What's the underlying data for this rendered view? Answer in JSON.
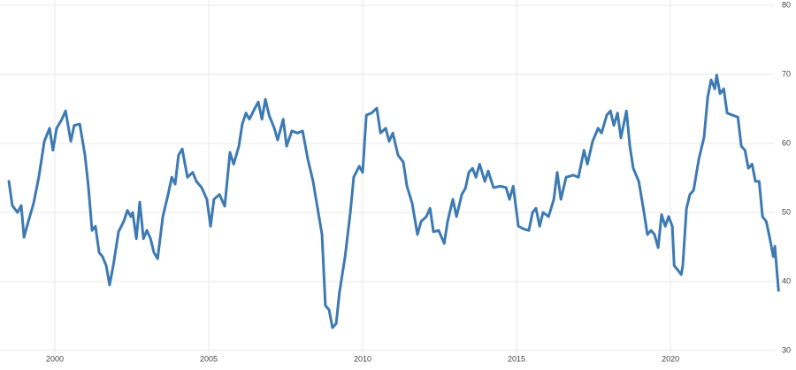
{
  "chart_data": {
    "type": "line",
    "color": "#3d7ab3",
    "grid": true,
    "xlim": [
      1998.22,
      2023.56
    ],
    "xticks": [
      2000,
      2005,
      2010,
      2015,
      2020
    ],
    "ylim": [
      30,
      80
    ],
    "yticks": [
      30,
      40,
      50,
      60,
      70,
      80
    ],
    "x": [
      1998.51,
      1998.62,
      1998.79,
      1998.91,
      1999.0,
      1999.14,
      1999.31,
      1999.48,
      1999.66,
      1999.83,
      1999.94,
      2000.06,
      2000.23,
      2000.35,
      2000.52,
      2000.63,
      2000.81,
      2000.98,
      2001.09,
      2001.21,
      2001.32,
      2001.44,
      2001.55,
      2001.67,
      2001.78,
      2001.9,
      2002.07,
      2002.24,
      2002.36,
      2002.47,
      2002.53,
      2002.65,
      2002.76,
      2002.88,
      2002.99,
      2003.11,
      2003.22,
      2003.34,
      2003.51,
      2003.68,
      2003.8,
      2003.91,
      2004.02,
      2004.14,
      2004.2,
      2004.31,
      2004.48,
      2004.6,
      2004.77,
      2004.94,
      2005.06,
      2005.17,
      2005.35,
      2005.52,
      2005.69,
      2005.81,
      2005.98,
      2006.09,
      2006.21,
      2006.32,
      2006.5,
      2006.61,
      2006.73,
      2006.84,
      2006.96,
      2007.13,
      2007.24,
      2007.42,
      2007.53,
      2007.7,
      2007.88,
      2008.05,
      2008.22,
      2008.39,
      2008.51,
      2008.68,
      2008.79,
      2008.91,
      2009.02,
      2009.14,
      2009.25,
      2009.43,
      2009.6,
      2009.71,
      2009.89,
      2010.0,
      2010.12,
      2010.29,
      2010.46,
      2010.58,
      2010.75,
      2010.86,
      2010.98,
      2011.15,
      2011.32,
      2011.44,
      2011.61,
      2011.78,
      2011.9,
      2012.07,
      2012.19,
      2012.3,
      2012.47,
      2012.65,
      2012.76,
      2012.93,
      2013.05,
      2013.22,
      2013.34,
      2013.45,
      2013.57,
      2013.68,
      2013.8,
      2013.97,
      2014.08,
      2014.25,
      2014.48,
      2014.66,
      2014.77,
      2014.89,
      2015.06,
      2015.23,
      2015.4,
      2015.52,
      2015.63,
      2015.75,
      2015.86,
      2016.04,
      2016.21,
      2016.32,
      2016.44,
      2016.61,
      2016.84,
      2017.01,
      2017.19,
      2017.3,
      2017.47,
      2017.65,
      2017.76,
      2017.93,
      2018.05,
      2018.16,
      2018.28,
      2018.39,
      2018.57,
      2018.68,
      2018.79,
      2018.97,
      2019.14,
      2019.25,
      2019.37,
      2019.48,
      2019.6,
      2019.71,
      2019.83,
      2019.94,
      2020.06,
      2020.12,
      2020.23,
      2020.35,
      2020.4,
      2020.52,
      2020.63,
      2020.75,
      2020.92,
      2021.09,
      2021.21,
      2021.32,
      2021.44,
      2021.5,
      2021.61,
      2021.73,
      2021.84,
      2022.01,
      2022.19,
      2022.3,
      2022.42,
      2022.53,
      2022.65,
      2022.76,
      2022.88,
      2022.99,
      2023.11,
      2023.22,
      2023.34,
      2023.39,
      2023.51
    ],
    "values": [
      54.5,
      51,
      50,
      51,
      46.4,
      48.7,
      51.3,
      55.1,
      60.3,
      62.2,
      59,
      62.2,
      63.5,
      64.7,
      60.3,
      62.6,
      62.8,
      58.3,
      53.8,
      47.4,
      48,
      44.2,
      43.6,
      42.3,
      39.5,
      42.3,
      47.2,
      48.7,
      50.3,
      49.4,
      50,
      46.2,
      51.5,
      46.2,
      47.4,
      46.2,
      44.2,
      43.3,
      49.4,
      52.6,
      55.1,
      54.1,
      58.3,
      59.2,
      57.7,
      55.1,
      55.8,
      54.5,
      53.6,
      51.9,
      48,
      51.9,
      52.6,
      50.9,
      58.7,
      57,
      59.6,
      62.8,
      64.4,
      63.5,
      65.1,
      66,
      63.5,
      66.4,
      64.1,
      62.2,
      60.5,
      63.5,
      59.6,
      61.8,
      61.5,
      61.8,
      57.7,
      54.5,
      51.3,
      46.8,
      36.5,
      35.9,
      33.3,
      33.9,
      38.5,
      43.6,
      50,
      55.1,
      56.7,
      55.8,
      64.1,
      64.4,
      65.1,
      61.5,
      62.2,
      60.3,
      61.5,
      58.3,
      57.3,
      53.8,
      51.3,
      46.8,
      48.7,
      49.4,
      50.6,
      47.2,
      47.4,
      45.5,
      48.7,
      51.9,
      49.4,
      52.6,
      53.5,
      55.8,
      56.4,
      55.1,
      57,
      54.5,
      56,
      53.6,
      53.8,
      53.6,
      51.9,
      53.8,
      48,
      47.6,
      47.4,
      50,
      50.6,
      48,
      50,
      49.4,
      51.9,
      55.8,
      51.9,
      55.1,
      55.4,
      55.1,
      59,
      57,
      60.3,
      62.2,
      61.5,
      64.1,
      64.7,
      62.6,
      64.4,
      60.8,
      64.7,
      59.6,
      56.4,
      54.5,
      50,
      46.8,
      47.4,
      46.8,
      44.9,
      49.7,
      48,
      49.4,
      48,
      42.3,
      41.7,
      41,
      42.3,
      50.6,
      52.6,
      53.2,
      57.7,
      60.9,
      66.7,
      69.2,
      67.9,
      69.9,
      67.2,
      67.9,
      64.4,
      64.1,
      63.8,
      59.6,
      59,
      56.4,
      57,
      54.5,
      54.5,
      49.4,
      48.7,
      46.4,
      43.6,
      45.1,
      38.7
    ]
  }
}
